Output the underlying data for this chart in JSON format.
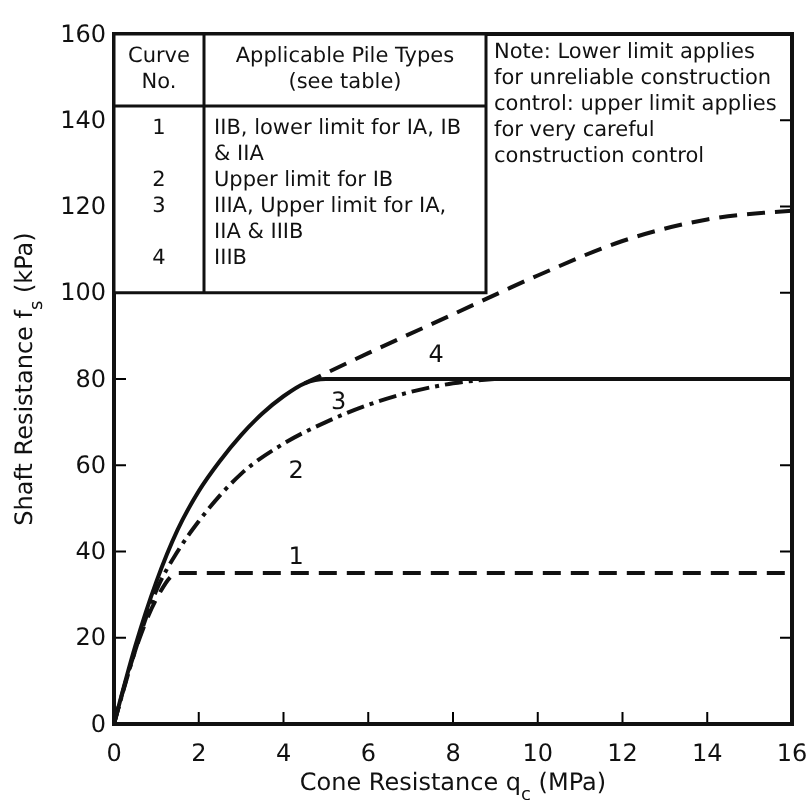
{
  "chart_data": {
    "type": "line",
    "xlabel": "Cone Resistance q$_{c}$ (MPa)",
    "ylabel": "Shaft Resistance f$_{s}$ (kPa)",
    "xlim": [
      0,
      16
    ],
    "ylim": [
      0,
      160
    ],
    "xticks": [
      0,
      2,
      4,
      6,
      8,
      10,
      12,
      14,
      16
    ],
    "yticks": [
      0,
      20,
      40,
      60,
      80,
      100,
      120,
      140,
      160
    ],
    "grid": false,
    "marker": "none",
    "series": [
      {
        "name": "1",
        "color": "#111111",
        "line_style": "dashed",
        "x": [
          0,
          0.5,
          1,
          1.5,
          16
        ],
        "values": [
          0,
          17,
          29,
          35,
          35
        ]
      },
      {
        "name": "2",
        "color": "#111111",
        "line_style": "dotted",
        "x": [
          0,
          0.5,
          1,
          1.5,
          2,
          3,
          4,
          5,
          6,
          7,
          8,
          9
        ],
        "values": [
          0,
          17,
          31,
          40,
          47,
          58,
          65,
          70,
          74,
          77,
          79,
          80
        ]
      },
      {
        "name": "3",
        "color": "#111111",
        "line_style": "solid",
        "x": [
          0,
          0.5,
          1,
          1.5,
          2,
          2.5,
          3,
          3.5,
          4,
          4.5,
          5,
          16
        ],
        "values": [
          0,
          18,
          33,
          45,
          54,
          61,
          67,
          72,
          76,
          79,
          80,
          80
        ]
      },
      {
        "name": "4",
        "color": "#111111",
        "line_style": "dashed",
        "x": [
          4.5,
          6,
          8,
          10,
          12,
          14,
          16
        ],
        "values": [
          79,
          86,
          95,
          104,
          112,
          117,
          119
        ]
      }
    ],
    "annotations": [
      "Curve No.",
      "Applicable Pile Types (see table)",
      "1",
      "IIB, lower limit for IA, IB & IIA",
      "2",
      "Upper limit for IB",
      "3",
      "IIIA, Upper limit for IA, IIA & IIIB",
      "4",
      "IIIB",
      "Note: Lower limit applies for unreliable construction control: upper limit applies for very careful construction control"
    ]
  }
}
